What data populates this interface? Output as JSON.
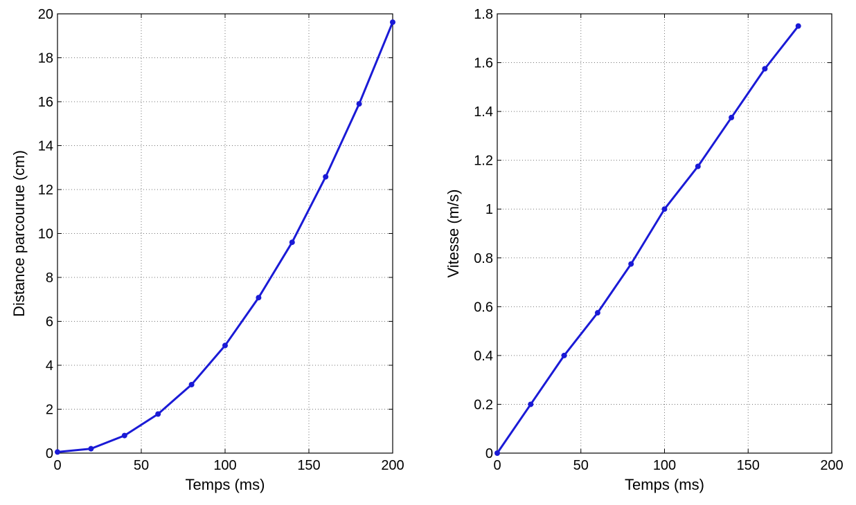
{
  "chart_data": [
    {
      "type": "line",
      "title": "",
      "xlabel": "Temps (ms)",
      "ylabel": "Distance parcourue (cm)",
      "xlim": [
        0,
        200
      ],
      "ylim": [
        0,
        20
      ],
      "xticks": [
        0,
        50,
        100,
        150,
        200
      ],
      "yticks": [
        0,
        2,
        4,
        6,
        8,
        10,
        12,
        14,
        16,
        18,
        20
      ],
      "xtick_labels": [
        "0",
        "50",
        "100",
        "150",
        "200"
      ],
      "ytick_labels": [
        "0",
        "2",
        "4",
        "6",
        "8",
        "10",
        "12",
        "14",
        "16",
        "18",
        "20"
      ],
      "grid": true,
      "line_color": "#1a1ad6",
      "series": [
        {
          "x": [
            0,
            20,
            40,
            60,
            80,
            100,
            120,
            140,
            160,
            180,
            200
          ],
          "y": [
            0.05,
            0.2,
            0.8,
            1.78,
            3.12,
            4.9,
            7.08,
            9.6,
            12.58,
            15.9,
            19.62
          ]
        }
      ]
    },
    {
      "type": "line",
      "title": "",
      "xlabel": "Temps (ms)",
      "ylabel": "Vitesse (m/s)",
      "xlim": [
        0,
        200
      ],
      "ylim": [
        0,
        1.8
      ],
      "xticks": [
        0,
        50,
        100,
        150,
        200
      ],
      "yticks": [
        0,
        0.2,
        0.4,
        0.6,
        0.8,
        1,
        1.2,
        1.4,
        1.6,
        1.8
      ],
      "xtick_labels": [
        "0",
        "50",
        "100",
        "150",
        "200"
      ],
      "ytick_labels": [
        "0",
        "0.2",
        "0.4",
        "0.6",
        "0.8",
        "1",
        "1.2",
        "1.4",
        "1.6",
        "1.8"
      ],
      "grid": true,
      "line_color": "#1a1ad6",
      "series": [
        {
          "x": [
            0,
            20,
            40,
            60,
            80,
            100,
            120,
            140,
            160,
            180
          ],
          "y": [
            0,
            0.2,
            0.4,
            0.575,
            0.775,
            1.0,
            1.175,
            1.375,
            1.575,
            1.75
          ]
        }
      ]
    }
  ]
}
